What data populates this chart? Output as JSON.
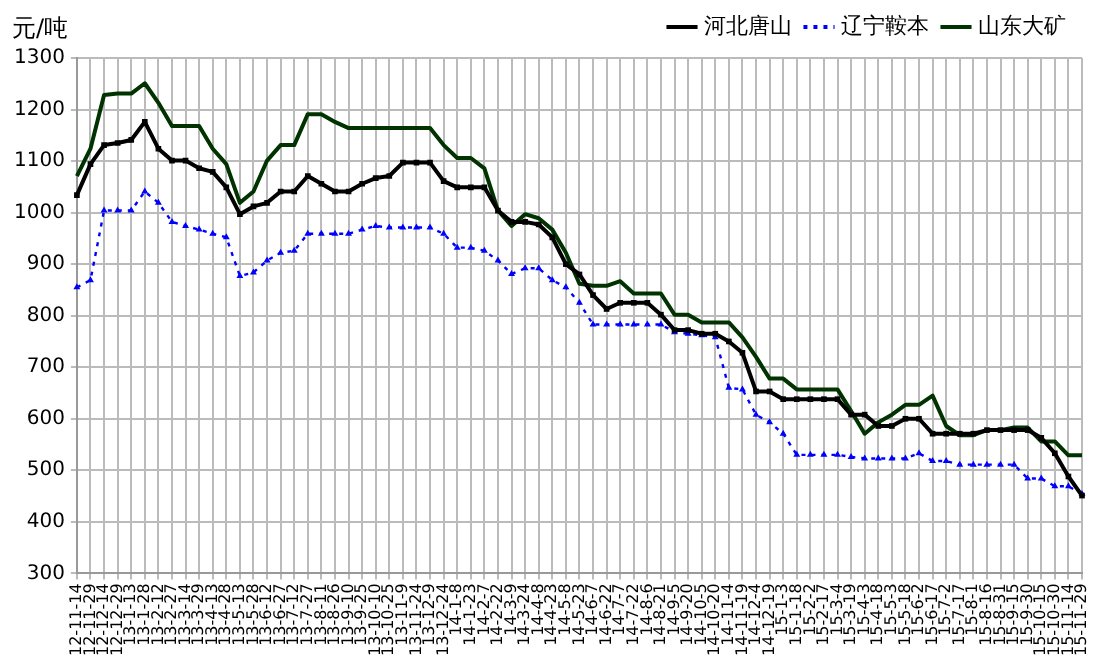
{
  "chart_data": {
    "type": "line",
    "ylabel": "元/吨",
    "categories": [
      "12-11-14",
      "12-11-29",
      "12-12-14",
      "12-12-29",
      "13-1-13",
      "13-1-28",
      "13-2-12",
      "13-2-27",
      "13-3-14",
      "13-3-29",
      "13-4-13",
      "13-4-28",
      "13-5-13",
      "13-5-28",
      "13-6-12",
      "13-6-27",
      "13-7-12",
      "13-7-27",
      "13-8-11",
      "13-8-26",
      "13-9-10",
      "13-9-25",
      "13-10-10",
      "13-10-25",
      "13-11-9",
      "13-11-24",
      "13-12-9",
      "13-12-24",
      "14-1-8",
      "14-1-23",
      "14-2-7",
      "14-2-22",
      "14-3-9",
      "14-3-24",
      "14-4-8",
      "14-4-23",
      "14-5-8",
      "14-5-23",
      "14-6-7",
      "14-6-22",
      "14-7-7",
      "14-7-22",
      "14-8-6",
      "14-8-21",
      "14-9-5",
      "14-9-20",
      "14-10-5",
      "14-10-20",
      "14-11-4",
      "14-11-19",
      "14-12-4",
      "14-12-19",
      "15-1-3",
      "15-1-18",
      "15-2-2",
      "15-2-17",
      "15-3-4",
      "15-3-19",
      "15-4-3",
      "15-4-18",
      "15-5-3",
      "15-5-18",
      "15-6-2",
      "15-6-17",
      "15-7-2",
      "15-7-17",
      "15-8-1",
      "15-8-16",
      "15-8-31",
      "15-9-15",
      "15-9-30",
      "15-10-15",
      "15-10-30",
      "15-11-14",
      "15-11-29"
    ],
    "series": [
      {
        "name": "河北唐山",
        "color": "#000000",
        "marker": "square",
        "line_style": "solid",
        "values": [
          1034,
          1094,
          1131,
          1135,
          1141,
          1176,
          1124,
          1101,
          1101,
          1086,
          1079,
          1049,
          997,
          1012,
          1019,
          1041,
          1041,
          1071,
          1056,
          1041,
          1041,
          1056,
          1067,
          1071,
          1097,
          1097,
          1097,
          1061,
          1049,
          1049,
          1049,
          1004,
          982,
          982,
          977,
          952,
          900,
          880,
          840,
          813,
          825,
          825,
          825,
          802,
          772,
          772,
          765,
          765,
          750,
          728,
          653,
          653,
          638,
          638,
          638,
          638,
          638,
          608,
          608,
          586,
          586,
          600,
          600,
          571,
          571,
          571,
          571,
          578,
          578,
          578,
          578,
          563,
          533,
          488,
          451
        ]
      },
      {
        "name": "辽宁鞍本",
        "color": "#0000ff",
        "marker": "triangle",
        "line_style": "dotted",
        "values": [
          855,
          869,
          1004,
          1004,
          1004,
          1041,
          1019,
          982,
          974,
          967,
          959,
          952,
          877,
          884,
          907,
          922,
          926,
          959,
          959,
          959,
          959,
          967,
          974,
          971,
          971,
          971,
          971,
          959,
          932,
          932,
          926,
          907,
          881,
          892,
          892,
          869,
          855,
          825,
          783,
          783,
          783,
          783,
          783,
          783,
          768,
          765,
          762,
          758,
          660,
          657,
          608,
          593,
          571,
          530,
          530,
          530,
          530,
          526,
          523,
          523,
          523,
          523,
          533,
          518,
          518,
          511,
          511,
          511,
          511,
          511,
          484,
          484,
          469,
          469,
          454
        ]
      },
      {
        "name": "山东大矿",
        "color": "#003300",
        "marker": "none",
        "line_style": "solid",
        "values": [
          1071,
          1124,
          1228,
          1231,
          1231,
          1251,
          1213,
          1168,
          1168,
          1168,
          1124,
          1094,
          1019,
          1041,
          1101,
          1131,
          1131,
          1191,
          1191,
          1176,
          1164,
          1164,
          1164,
          1164,
          1164,
          1164,
          1164,
          1131,
          1106,
          1106,
          1086,
          1004,
          974,
          997,
          989,
          967,
          922,
          862,
          858,
          858,
          867,
          843,
          843,
          843,
          802,
          802,
          787,
          787,
          787,
          758,
          720,
          678,
          678,
          657,
          657,
          657,
          657,
          615,
          571,
          593,
          608,
          627,
          627,
          645,
          586,
          568,
          568,
          578,
          578,
          583,
          583,
          556,
          556,
          529,
          529
        ]
      }
    ],
    "ylim": [
      300,
      1300
    ],
    "yticks": [
      300,
      400,
      500,
      600,
      700,
      800,
      900,
      1000,
      1100,
      1200,
      1300
    ],
    "grid": true,
    "legend": "top"
  }
}
